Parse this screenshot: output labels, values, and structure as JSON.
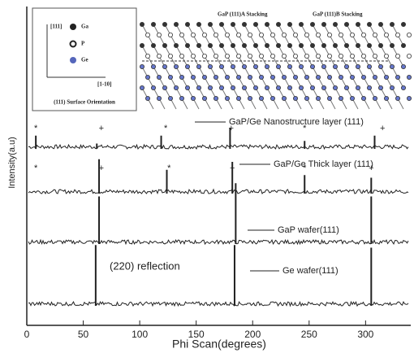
{
  "chart_data": {
    "type": "phi-scan",
    "x_label": "Phi Scan(degrees)",
    "y_label": "Intensity(a.u)",
    "xlim": [
      0,
      340
    ],
    "xticks": [
      0,
      50,
      100,
      150,
      200,
      250,
      300
    ],
    "annotation": "(220) reflection",
    "series": [
      {
        "name": "GaP/Ge Nanostructure layer (111)",
        "color": "#222222",
        "x": [
          8,
          62,
          119,
          180,
          246,
          308
        ],
        "values": [
          0.25,
          0.1,
          0.25,
          0.4,
          0.15,
          0.25
        ],
        "markers": [
          {
            "x": 8,
            "label": "*"
          },
          {
            "x": 66,
            "label": "+"
          },
          {
            "x": 123,
            "label": "*"
          },
          {
            "x": 181,
            "label": "+"
          },
          {
            "x": 246,
            "label": "*"
          },
          {
            "x": 315,
            "label": "+"
          }
        ]
      },
      {
        "name": "GaP/Ge Thick layer (111)",
        "color": "#222222",
        "x": [
          64,
          124,
          182,
          246,
          305
        ],
        "values": [
          0.65,
          0.45,
          0.6,
          0.35,
          0.3
        ],
        "markers": [
          {
            "x": 8,
            "label": "*"
          },
          {
            "x": 66,
            "label": "+"
          },
          {
            "x": 126,
            "label": "*"
          },
          {
            "x": 182,
            "label": "+"
          },
          {
            "x": 246,
            "label": "*"
          },
          {
            "x": 305,
            "label": "+"
          }
        ]
      },
      {
        "name": "GaP wafer(111)",
        "color": "#222222",
        "x": [
          64,
          185,
          305
        ],
        "values": [
          0.9,
          1.15,
          0.9
        ],
        "markers": []
      },
      {
        "name": "Ge wafer(111)",
        "color": "#222222",
        "x": [
          61,
          184,
          305
        ],
        "values": [
          1.15,
          1.15,
          1.1
        ],
        "markers": []
      }
    ],
    "inset": {
      "direction_1": "[111]",
      "direction_2": "[1-10]",
      "legend": [
        "Ga",
        "P",
        "Ge"
      ],
      "caption": "(111) Surface Orientation",
      "stacking_a": "GaP (111)A Stacking",
      "stacking_b": "GaP (111)B Stacking"
    }
  }
}
